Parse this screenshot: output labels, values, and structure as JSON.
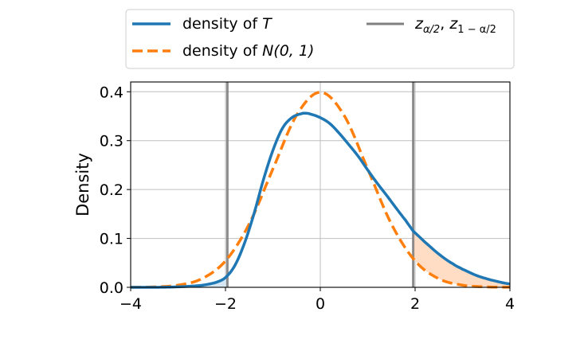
{
  "chart_data": {
    "type": "line",
    "title": "",
    "xlabel": "",
    "ylabel": "Density",
    "xlim": [
      -4,
      4
    ],
    "ylim": [
      0,
      0.42
    ],
    "grid": true,
    "legend_position": "upper center (outside plot, above)",
    "x_ticks": [
      "−4",
      "−2",
      "0",
      "2",
      "4"
    ],
    "y_ticks": [
      "0.0",
      "0.1",
      "0.2",
      "0.3",
      "0.4"
    ],
    "x_tick_values": [
      -4,
      -2,
      0,
      2,
      4
    ],
    "y_tick_values": [
      0.0,
      0.1,
      0.2,
      0.3,
      0.4
    ],
    "series": [
      {
        "name": "density of T",
        "legend_label_prefix": "density of ",
        "legend_label_math": "T",
        "style": "solid",
        "color": "#1f77b4",
        "x": [
          -4.0,
          -3.5,
          -3.0,
          -2.5,
          -2.2,
          -2.0,
          -1.8,
          -1.6,
          -1.4,
          -1.2,
          -1.0,
          -0.8,
          -0.6,
          -0.4,
          -0.3,
          -0.2,
          0.0,
          0.2,
          0.4,
          0.6,
          0.8,
          1.0,
          1.2,
          1.4,
          1.6,
          1.8,
          1.96,
          2.2,
          2.5,
          2.8,
          3.0,
          3.3,
          3.6,
          4.0
        ],
        "values": [
          0.0,
          0.0,
          0.001,
          0.004,
          0.01,
          0.02,
          0.045,
          0.09,
          0.15,
          0.22,
          0.28,
          0.325,
          0.347,
          0.355,
          0.356,
          0.354,
          0.347,
          0.335,
          0.315,
          0.292,
          0.268,
          0.24,
          0.213,
          0.188,
          0.162,
          0.137,
          0.115,
          0.093,
          0.068,
          0.048,
          0.037,
          0.024,
          0.015,
          0.007
        ]
      },
      {
        "name": "density of N(0,1)",
        "legend_label_prefix": "density of ",
        "legend_label_math": "N(0, 1)",
        "style": "dashed",
        "color": "#ff7f0e",
        "x": [
          -4.0,
          -3.5,
          -3.0,
          -2.5,
          -2.0,
          -1.5,
          -1.0,
          -0.5,
          0.0,
          0.5,
          1.0,
          1.5,
          2.0,
          2.5,
          3.0,
          3.5,
          4.0
        ],
        "values": [
          0.0001,
          0.0009,
          0.0044,
          0.0175,
          0.054,
          0.1295,
          0.242,
          0.352,
          0.399,
          0.352,
          0.242,
          0.1295,
          0.054,
          0.0175,
          0.0044,
          0.0009,
          0.0001
        ]
      },
      {
        "name": "z_{α/2}, z_{1−α/2}",
        "style": "vline",
        "color": "#808080",
        "x_positions": [
          -1.96,
          1.96
        ]
      }
    ],
    "fills": [
      {
        "region": "between N(0,1) and T for x > 1.96",
        "color": "#ffdcc4"
      },
      {
        "region": "between T and N(0,1) near x < -1.96",
        "color": "#d6e7f4"
      }
    ]
  },
  "legend": {
    "items": [
      {
        "prefix": "density of ",
        "math": "T"
      },
      {
        "prefix": "density of ",
        "math": "N(0, 1)"
      },
      {
        "z1": "z",
        "z1_sub": "α/2",
        "sep": ", ",
        "z2": "z",
        "z2_sub": "1 − α/2"
      }
    ]
  }
}
